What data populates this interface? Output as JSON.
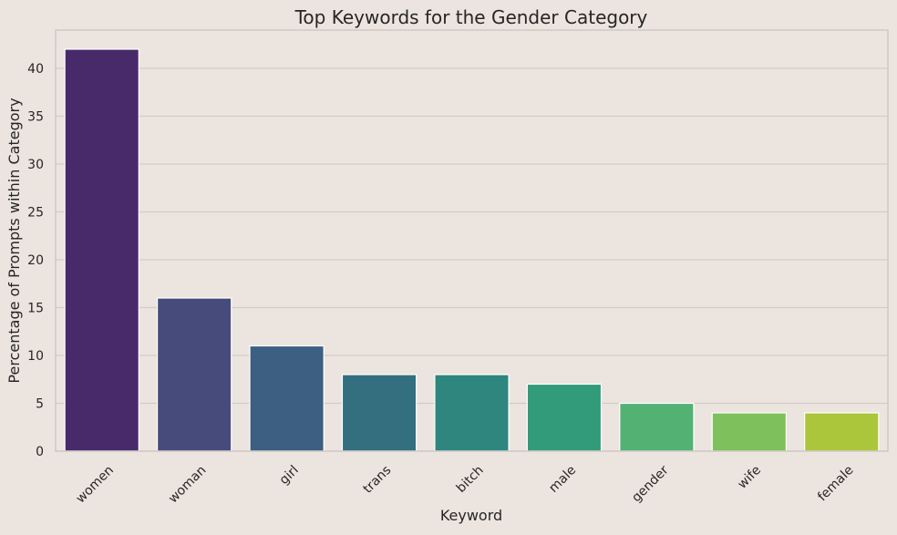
{
  "chart_data": {
    "type": "bar",
    "title": "Top Keywords for the Gender Category",
    "xlabel": "Keyword",
    "ylabel": "Percentage of Prompts within Category",
    "categories": [
      "women",
      "woman",
      "girl",
      "trans",
      "bitch",
      "male",
      "gender",
      "wife",
      "female"
    ],
    "values": [
      42,
      16,
      11,
      8,
      8,
      7,
      5,
      4,
      4
    ],
    "colors": [
      "#482a6b",
      "#474b7b",
      "#3c5f82",
      "#336f7f",
      "#2e867e",
      "#329b79",
      "#52b173",
      "#7ec15c",
      "#abc63a"
    ],
    "ylim": [
      0,
      44
    ],
    "yticks": [
      0,
      5,
      10,
      15,
      20,
      25,
      30,
      35,
      40
    ],
    "grid": true,
    "background": "#ece4de",
    "grid_color": "#d2ccc8"
  }
}
